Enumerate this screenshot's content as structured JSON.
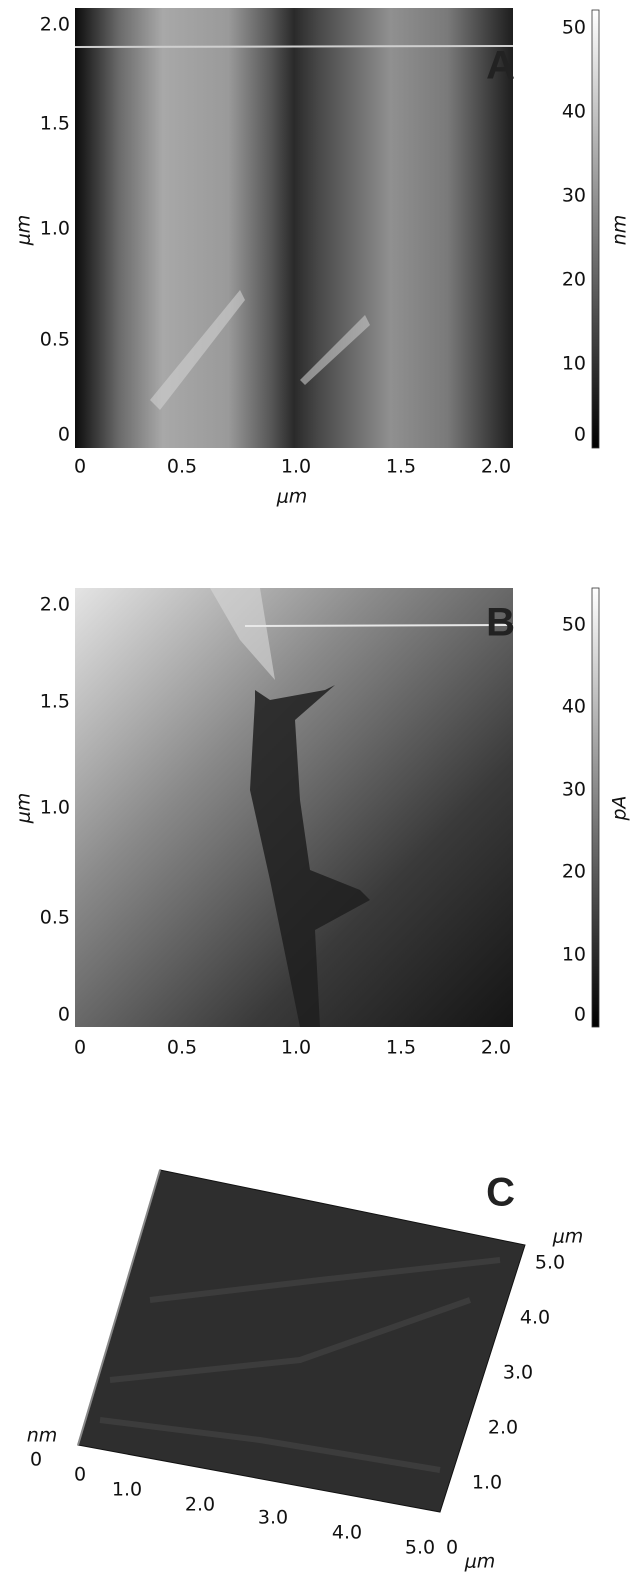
{
  "panels": [
    {
      "label": "A",
      "x_axis_label": "μm",
      "y_axis_label": "μm",
      "x_ticks": [
        "0",
        "0.5",
        "1.0",
        "1.5",
        "2.0"
      ],
      "y_ticks": [
        "2.0",
        "1.5",
        "1.0",
        "0.5",
        "0"
      ],
      "colorbar_ticks": [
        "50",
        "40",
        "30",
        "20",
        "10",
        "0"
      ],
      "colorbar_unit": "nm"
    },
    {
      "label": "B",
      "y_axis_label": "μm",
      "x_ticks": [
        "0",
        "0.5",
        "1.0",
        "1.5",
        "2.0"
      ],
      "y_ticks": [
        "2.0",
        "1.5",
        "1.0",
        "0.5",
        "0"
      ],
      "colorbar_ticks": [
        "50",
        "40",
        "30",
        "20",
        "10",
        "0"
      ],
      "colorbar_unit": "pA"
    },
    {
      "label": "C",
      "z_unit": "nm",
      "z_tick": "0",
      "x_ticks": [
        "0",
        "1.0",
        "2.0",
        "3.0",
        "4.0",
        "5.0"
      ],
      "x_unit": "μm",
      "y_ticks": [
        "0",
        "1.0",
        "2.0",
        "3.0",
        "4.0",
        "5.0"
      ],
      "y_unit": "μm"
    }
  ]
}
